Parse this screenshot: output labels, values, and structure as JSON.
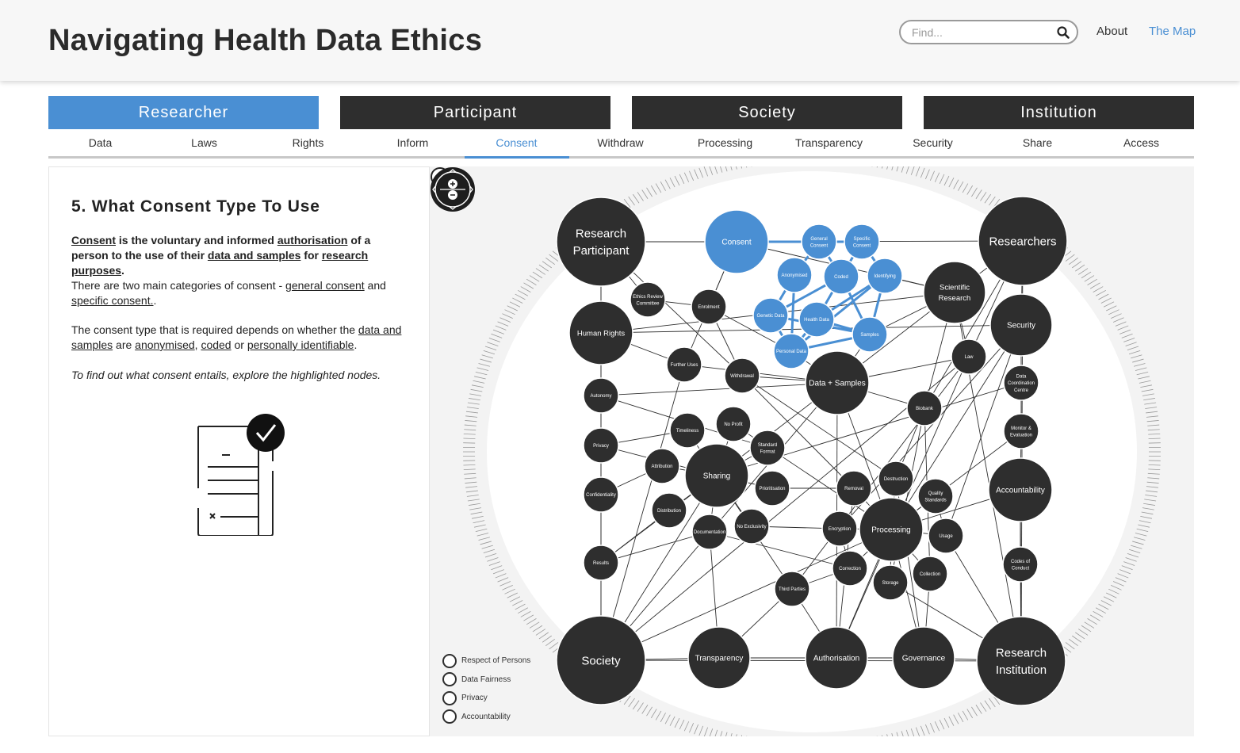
{
  "site": {
    "title": "Navigating Health Data Ethics"
  },
  "search": {
    "placeholder": "Find..."
  },
  "top_nav": {
    "about": "About",
    "map": "The Map"
  },
  "colors": {
    "accent": "#4a8fd3",
    "dark": "#2e2e2e",
    "highlight_node": "#4a8fd3"
  },
  "categories": [
    {
      "label": "Researcher",
      "active": true
    },
    {
      "label": "Participant",
      "active": false
    },
    {
      "label": "Society",
      "active": false
    },
    {
      "label": "Institution",
      "active": false
    }
  ],
  "subtabs": [
    "Data",
    "Laws",
    "Rights",
    "Inform",
    "Consent",
    "Withdraw",
    "Processing",
    "Transparency",
    "Security",
    "Share",
    "Access"
  ],
  "active_subtab": "Consent",
  "content": {
    "heading": "5. What Consent Type To Use",
    "p1": {
      "consent": "Consent",
      "t1": " is the voluntary and informed ",
      "authorisation": "authorisation",
      "t2": " of a person to the use of their ",
      "data_samples": "data and samples",
      "t3": " for ",
      "research_purposes": "research purposes",
      "t4": "."
    },
    "p2": {
      "t1": "There are two main categories of consent - ",
      "general": "general consent",
      "t2": " and ",
      "specific": "specific consent.",
      "t3": "."
    },
    "p3": {
      "t1": "The consent type that is required depends on whether the ",
      "data_samples": "data and samples",
      "t2": " are ",
      "anonymised": "anonymised",
      "t3": ", ",
      "coded": "coded",
      "t4": " or ",
      "identifiable": "personally identifiable",
      "t5": "."
    },
    "p4": "To find out what consent entails, explore the highlighted nodes.",
    "illustration_icon": "signed-document-checkmark-icon"
  },
  "legend": [
    "Respect of Persons",
    "Data Fairness",
    "Privacy",
    "Accountability"
  ],
  "map": {
    "nodes": [
      {
        "id": "research_participant",
        "label": [
          "Research",
          "Participant"
        ],
        "size": "xl",
        "hl": false
      },
      {
        "id": "researchers",
        "label": [
          "Researchers"
        ],
        "size": "xl",
        "hl": false
      },
      {
        "id": "society",
        "label": [
          "Society"
        ],
        "size": "xl",
        "hl": false
      },
      {
        "id": "research_institution",
        "label": [
          "Research",
          "Institution"
        ],
        "size": "xl",
        "hl": false
      },
      {
        "id": "consent",
        "label": [
          "Consent"
        ],
        "size": "l",
        "hl": true
      },
      {
        "id": "general_consent",
        "label": [
          "General",
          "Consent"
        ],
        "size": "s",
        "hl": true
      },
      {
        "id": "specific_consent",
        "label": [
          "Specific",
          "Consent"
        ],
        "size": "s",
        "hl": true
      },
      {
        "id": "anonymised",
        "label": [
          "Anonymised"
        ],
        "size": "s",
        "hl": true
      },
      {
        "id": "coded",
        "label": [
          "Coded"
        ],
        "size": "s",
        "hl": true
      },
      {
        "id": "identifying",
        "label": [
          "Identifying"
        ],
        "size": "s",
        "hl": true
      },
      {
        "id": "genetic_data",
        "label": [
          "Genetic Data"
        ],
        "size": "s",
        "hl": true
      },
      {
        "id": "health_data",
        "label": [
          "Health Data"
        ],
        "size": "s",
        "hl": true
      },
      {
        "id": "samples",
        "label": [
          "Samples"
        ],
        "size": "s",
        "hl": true
      },
      {
        "id": "personal_data",
        "label": [
          "Personal Data"
        ],
        "size": "s",
        "hl": true
      },
      {
        "id": "human_rights",
        "label": [
          "Human Rights"
        ],
        "size": "m",
        "hl": false
      },
      {
        "id": "ethics_review",
        "label": [
          "Ethics Review",
          "Committee"
        ],
        "size": "s",
        "hl": false
      },
      {
        "id": "enrolment",
        "label": [
          "Enrolment"
        ],
        "size": "s",
        "hl": false
      },
      {
        "id": "scientific_research",
        "label": [
          "Scientific",
          "Research"
        ],
        "size": "m",
        "hl": false
      },
      {
        "id": "security",
        "label": [
          "Security"
        ],
        "size": "m",
        "hl": false
      },
      {
        "id": "law",
        "label": [
          "Law"
        ],
        "size": "s",
        "hl": false
      },
      {
        "id": "further_uses",
        "label": [
          "Further Uses"
        ],
        "size": "s",
        "hl": false
      },
      {
        "id": "withdrawal",
        "label": [
          "Withdrawal"
        ],
        "size": "s",
        "hl": false
      },
      {
        "id": "data_samples",
        "label": [
          "Data + Samples"
        ],
        "size": "m",
        "hl": false
      },
      {
        "id": "data_coordination",
        "label": [
          "Data",
          "Coordination",
          "Centre"
        ],
        "size": "s",
        "hl": false
      },
      {
        "id": "autonomy",
        "label": [
          "Autonomy"
        ],
        "size": "s",
        "hl": false
      },
      {
        "id": "biobank",
        "label": [
          "Biobank"
        ],
        "size": "s",
        "hl": false
      },
      {
        "id": "timeliness",
        "label": [
          "Timeliness"
        ],
        "size": "s",
        "hl": false
      },
      {
        "id": "no_profit",
        "label": [
          "No Profit"
        ],
        "size": "s",
        "hl": false
      },
      {
        "id": "monitor_eval",
        "label": [
          "Monitor &",
          "Evaluation"
        ],
        "size": "s",
        "hl": false
      },
      {
        "id": "privacy",
        "label": [
          "Privacy"
        ],
        "size": "s",
        "hl": false
      },
      {
        "id": "standard_format",
        "label": [
          "Standard",
          "Format"
        ],
        "size": "s",
        "hl": false
      },
      {
        "id": "attribution",
        "label": [
          "Attribution"
        ],
        "size": "s",
        "hl": false
      },
      {
        "id": "sharing",
        "label": [
          "Sharing"
        ],
        "size": "m",
        "hl": false
      },
      {
        "id": "accountability",
        "label": [
          "Accountability"
        ],
        "size": "m",
        "hl": false
      },
      {
        "id": "destruction",
        "label": [
          "Destruction"
        ],
        "size": "s",
        "hl": false
      },
      {
        "id": "confidentiality",
        "label": [
          "Confidentiality"
        ],
        "size": "s",
        "hl": false
      },
      {
        "id": "prioritisation",
        "label": [
          "Prioritisation"
        ],
        "size": "s",
        "hl": false
      },
      {
        "id": "removal",
        "label": [
          "Removal"
        ],
        "size": "s",
        "hl": false
      },
      {
        "id": "quality_standards",
        "label": [
          "Quality",
          "Standards"
        ],
        "size": "s",
        "hl": false
      },
      {
        "id": "distribution",
        "label": [
          "Distribution"
        ],
        "size": "s",
        "hl": false
      },
      {
        "id": "no_exclusivity",
        "label": [
          "No Exclusivity"
        ],
        "size": "s",
        "hl": false
      },
      {
        "id": "documentation",
        "label": [
          "Documentation"
        ],
        "size": "s",
        "hl": false
      },
      {
        "id": "encryption",
        "label": [
          "Encryption"
        ],
        "size": "s",
        "hl": false
      },
      {
        "id": "processing",
        "label": [
          "Processing"
        ],
        "size": "m",
        "hl": false
      },
      {
        "id": "usage",
        "label": [
          "Usage"
        ],
        "size": "s",
        "hl": false
      },
      {
        "id": "results",
        "label": [
          "Results"
        ],
        "size": "s",
        "hl": false
      },
      {
        "id": "codes_conduct",
        "label": [
          "Codes of",
          "Conduct"
        ],
        "size": "s",
        "hl": false
      },
      {
        "id": "correction",
        "label": [
          "Correction"
        ],
        "size": "s",
        "hl": false
      },
      {
        "id": "collection",
        "label": [
          "Collection"
        ],
        "size": "s",
        "hl": false
      },
      {
        "id": "storage",
        "label": [
          "Storage"
        ],
        "size": "s",
        "hl": false
      },
      {
        "id": "third_parties",
        "label": [
          "Third Parties"
        ],
        "size": "s",
        "hl": false
      },
      {
        "id": "transparency",
        "label": [
          "Transparency"
        ],
        "size": "m",
        "hl": false
      },
      {
        "id": "authorisation",
        "label": [
          "Authorisation"
        ],
        "size": "m",
        "hl": false
      },
      {
        "id": "governance",
        "label": [
          "Governance"
        ],
        "size": "m",
        "hl": false
      }
    ],
    "highlight_edges": [
      [
        "consent",
        "general_consent"
      ],
      [
        "consent",
        "specific_consent"
      ],
      [
        "general_consent",
        "specific_consent"
      ],
      [
        "general_consent",
        "anonymised"
      ],
      [
        "general_consent",
        "coded"
      ],
      [
        "specific_consent",
        "coded"
      ],
      [
        "specific_consent",
        "identifying"
      ],
      [
        "anonymised",
        "genetic_data"
      ],
      [
        "anonymised",
        "personal_data"
      ],
      [
        "coded",
        "genetic_data"
      ],
      [
        "coded",
        "health_data"
      ],
      [
        "coded",
        "samples"
      ],
      [
        "identifying",
        "health_data"
      ],
      [
        "identifying",
        "samples"
      ],
      [
        "identifying",
        "personal_data"
      ],
      [
        "genetic_data",
        "samples"
      ],
      [
        "health_data",
        "personal_data"
      ],
      [
        "samples",
        "personal_data"
      ],
      [
        "genetic_data",
        "personal_data"
      ],
      [
        "health_data",
        "samples"
      ]
    ],
    "edges": [
      [
        "research_participant",
        "consent"
      ],
      [
        "research_participant",
        "human_rights"
      ],
      [
        "research_participant",
        "ethics_review"
      ],
      [
        "research_participant",
        "society"
      ],
      [
        "researchers",
        "scientific_research"
      ],
      [
        "researchers",
        "security"
      ],
      [
        "researchers",
        "research_institution"
      ],
      [
        "researchers",
        "consent"
      ],
      [
        "society",
        "research_institution"
      ],
      [
        "society",
        "transparency"
      ],
      [
        "society",
        "human_rights"
      ],
      [
        "society",
        "sharing"
      ],
      [
        "society",
        "data_samples"
      ],
      [
        "research_institution",
        "governance"
      ],
      [
        "research_institution",
        "accountability"
      ],
      [
        "research_institution",
        "scientific_research"
      ],
      [
        "human_rights",
        "autonomy"
      ],
      [
        "human_rights",
        "privacy"
      ],
      [
        "human_rights",
        "confidentiality"
      ],
      [
        "human_rights",
        "security"
      ],
      [
        "autonomy",
        "privacy"
      ],
      [
        "privacy",
        "confidentiality"
      ],
      [
        "confidentiality",
        "results"
      ],
      [
        "results",
        "society"
      ],
      [
        "enrolment",
        "consent"
      ],
      [
        "enrolment",
        "personal_data"
      ],
      [
        "enrolment",
        "withdrawal"
      ],
      [
        "ethics_review",
        "enrolment"
      ],
      [
        "data_samples",
        "samples"
      ],
      [
        "data_samples",
        "personal_data"
      ],
      [
        "data_samples",
        "processing"
      ],
      [
        "data_samples",
        "sharing"
      ],
      [
        "data_samples",
        "biobank"
      ],
      [
        "data_samples",
        "further_uses"
      ],
      [
        "data_samples",
        "withdrawal"
      ],
      [
        "data_samples",
        "scientific_research"
      ],
      [
        "data_samples",
        "law"
      ],
      [
        "scientific_research",
        "samples"
      ],
      [
        "scientific_research",
        "law"
      ],
      [
        "scientific_research",
        "biobank"
      ],
      [
        "scientific_research",
        "identifying"
      ],
      [
        "security",
        "data_coordination"
      ],
      [
        "data_coordination",
        "monitor_eval"
      ],
      [
        "monitor_eval",
        "accountability"
      ],
      [
        "accountability",
        "codes_conduct"
      ],
      [
        "codes_conduct",
        "research_institution"
      ],
      [
        "accountability",
        "processing"
      ],
      [
        "security",
        "encryption"
      ],
      [
        "security",
        "processing"
      ],
      [
        "sharing",
        "timeliness"
      ],
      [
        "sharing",
        "no_profit"
      ],
      [
        "sharing",
        "attribution"
      ],
      [
        "sharing",
        "distribution"
      ],
      [
        "sharing",
        "documentation"
      ],
      [
        "sharing",
        "prioritisation"
      ],
      [
        "sharing",
        "standard_format"
      ],
      [
        "sharing",
        "no_exclusivity"
      ],
      [
        "sharing",
        "third_parties"
      ],
      [
        "processing",
        "usage"
      ],
      [
        "processing",
        "storage"
      ],
      [
        "processing",
        "collection"
      ],
      [
        "processing",
        "correction"
      ],
      [
        "processing",
        "encryption"
      ],
      [
        "processing",
        "destruction"
      ],
      [
        "processing",
        "removal"
      ],
      [
        "processing",
        "quality_standards"
      ],
      [
        "processing",
        "governance"
      ],
      [
        "biobank",
        "destruction"
      ],
      [
        "biobank",
        "storage"
      ],
      [
        "law",
        "authorisation"
      ],
      [
        "law",
        "third_parties"
      ],
      [
        "further_uses",
        "consent"
      ],
      [
        "further_uses",
        "society"
      ],
      [
        "withdrawal",
        "removal"
      ],
      [
        "withdrawal",
        "destruction"
      ],
      [
        "transparency",
        "documentation"
      ],
      [
        "transparency",
        "governance"
      ],
      [
        "authorisation",
        "governance"
      ],
      [
        "authorisation",
        "third_parties"
      ],
      [
        "authorisation",
        "data_samples"
      ],
      [
        "governance",
        "collection"
      ],
      [
        "usage",
        "research_institution"
      ],
      [
        "privacy",
        "timeliness"
      ],
      [
        "confidentiality",
        "attribution"
      ],
      [
        "results",
        "distribution"
      ],
      [
        "results",
        "documentation"
      ],
      [
        "autonomy",
        "standard_format"
      ],
      [
        "prioritisation",
        "removal"
      ],
      [
        "no_exclusivity",
        "encryption"
      ],
      [
        "documentation",
        "correction"
      ],
      [
        "quality_standards",
        "usage"
      ],
      [
        "third_parties",
        "correction"
      ],
      [
        "storage",
        "research_institution"
      ],
      [
        "human_rights",
        "scientific_research"
      ],
      [
        "research_participant",
        "withdrawal"
      ],
      [
        "transparency",
        "third_parties"
      ],
      [
        "authorisation",
        "processing"
      ],
      [
        "monitor_eval",
        "processing"
      ],
      [
        "data_coordination",
        "sharing"
      ],
      [
        "researchers",
        "biobank"
      ],
      [
        "researchers",
        "law"
      ],
      [
        "biobank",
        "collection"
      ],
      [
        "encryption",
        "correction"
      ],
      [
        "human_rights",
        "further_uses"
      ],
      [
        "privacy",
        "sharing"
      ],
      [
        "autonomy",
        "data_samples"
      ],
      [
        "results",
        "sharing"
      ],
      [
        "society",
        "processing"
      ],
      [
        "security",
        "usage"
      ],
      [
        "scientific_research",
        "consent"
      ],
      [
        "law",
        "society"
      ],
      [
        "destruction",
        "governance"
      ],
      [
        "removal",
        "authorisation"
      ],
      [
        "no_profit",
        "processing"
      ]
    ]
  }
}
